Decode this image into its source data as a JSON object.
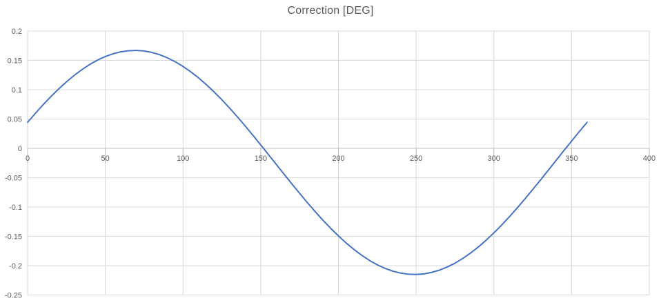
{
  "chart_data": {
    "type": "line",
    "title": "Correction [DEG]",
    "xlabel": "",
    "ylabel": "",
    "xlim": [
      0,
      400
    ],
    "ylim": [
      -0.25,
      0.2
    ],
    "grid": true,
    "legend": "none",
    "x_tick_values": [
      0,
      50,
      100,
      150,
      200,
      250,
      300,
      350,
      400
    ],
    "x_tick_labels": [
      "0",
      "50",
      "100",
      "150",
      "200",
      "250",
      "300",
      "350",
      "400"
    ],
    "y_tick_values": [
      0.2,
      0.15,
      0.1,
      0.05,
      0,
      -0.05,
      -0.1,
      -0.15,
      -0.2,
      -0.25
    ],
    "y_tick_labels": [
      "0.2",
      "0.15",
      "0.1",
      "0.05",
      "0",
      "-0.05",
      "-0.1",
      "-0.15",
      "-0.2",
      "-0.25"
    ],
    "series": [
      {
        "name": "Correction",
        "color": "#4472C4",
        "x_start": 0,
        "x_step": 5,
        "x_end": 360,
        "values": [
          0.0444,
          0.0597,
          0.0744,
          0.0883,
          0.1013,
          0.1134,
          0.1244,
          0.1343,
          0.1431,
          0.1505,
          0.1566,
          0.1613,
          0.1646,
          0.1665,
          0.167,
          0.166,
          0.1635,
          0.1596,
          0.1543,
          0.1477,
          0.1397,
          0.1305,
          0.1202,
          0.1087,
          0.0962,
          0.0828,
          0.0686,
          0.0537,
          0.0382,
          0.0222,
          0.0059,
          -0.0107,
          -0.0273,
          -0.044,
          -0.0604,
          -0.0766,
          -0.0925,
          -0.1077,
          -0.1224,
          -0.1363,
          -0.1493,
          -0.1614,
          -0.1724,
          -0.1823,
          -0.1911,
          -0.1985,
          -0.2046,
          -0.2093,
          -0.2126,
          -0.2145,
          -0.215,
          -0.214,
          -0.2115,
          -0.2076,
          -0.2023,
          -0.1957,
          -0.1877,
          -0.1785,
          -0.1682,
          -0.1567,
          -0.1442,
          -0.1308,
          -0.1166,
          -0.1017,
          -0.0862,
          -0.0702,
          -0.0539,
          -0.0373,
          -0.0207,
          -0.004,
          0.0124,
          0.0287,
          0.0444
        ]
      }
    ],
    "colors": {
      "background": "#FFFFFF",
      "gridline": "#D9D9D9",
      "axis_line": "#BFBFBF",
      "tick_mark": "#BFBFBF",
      "tick_label": "#595959",
      "title": "#595959",
      "series_line": "#4472C4"
    }
  }
}
